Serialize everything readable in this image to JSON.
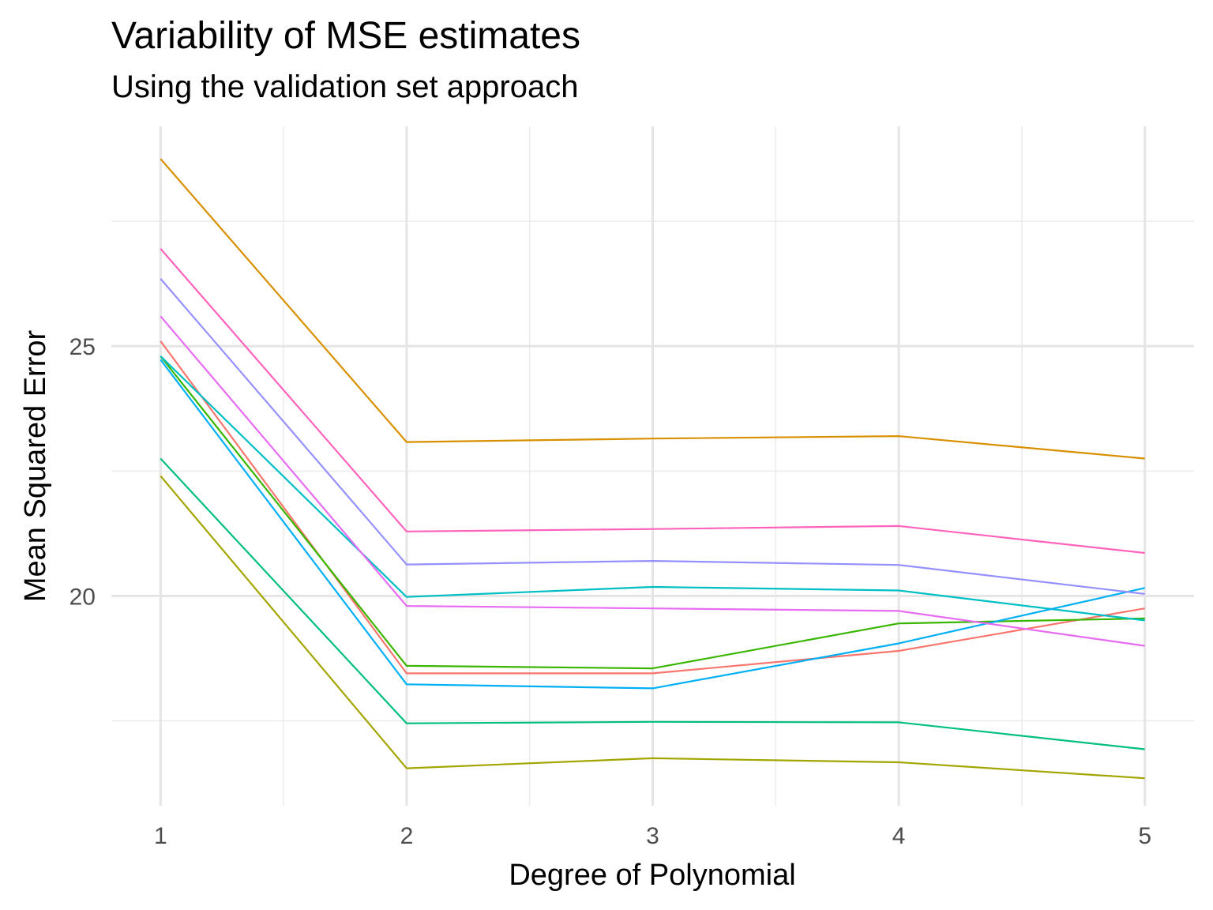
{
  "chart_data": {
    "type": "line",
    "title": "Variability of MSE estimates",
    "subtitle": "Using the validation set approach",
    "xlabel": "Degree of Polynomial",
    "ylabel": "Mean Squared Error",
    "x": [
      1,
      2,
      3,
      4,
      5
    ],
    "x_ticks": [
      "1",
      "2",
      "3",
      "4",
      "5"
    ],
    "y_ticks": [
      20,
      25
    ],
    "xlim": [
      0.8,
      5.2
    ],
    "ylim": [
      15.8,
      29.4
    ],
    "grid": true,
    "legend": "none",
    "series": [
      {
        "color": "#F8766D",
        "values": [
          25.1,
          18.45,
          18.45,
          18.9,
          19.75
        ]
      },
      {
        "color": "#D89000",
        "values": [
          28.75,
          23.08,
          23.15,
          23.2,
          22.75
        ]
      },
      {
        "color": "#A3A500",
        "values": [
          22.4,
          16.55,
          16.75,
          16.67,
          16.35
        ]
      },
      {
        "color": "#39B600",
        "values": [
          24.8,
          18.6,
          18.55,
          19.45,
          19.55
        ]
      },
      {
        "color": "#00BF7D",
        "values": [
          22.75,
          17.45,
          17.48,
          17.47,
          16.93
        ]
      },
      {
        "color": "#00BFC4",
        "values": [
          24.8,
          19.98,
          20.18,
          20.11,
          19.51
        ]
      },
      {
        "color": "#00B0F6",
        "values": [
          24.73,
          18.23,
          18.15,
          19.05,
          20.16
        ]
      },
      {
        "color": "#9590FF",
        "values": [
          26.35,
          20.63,
          20.7,
          20.62,
          20.04
        ]
      },
      {
        "color": "#E76BF3",
        "values": [
          25.6,
          19.8,
          19.75,
          19.7,
          19.0
        ]
      },
      {
        "color": "#FF62BC",
        "values": [
          26.95,
          21.29,
          21.34,
          21.4,
          20.86
        ]
      }
    ]
  }
}
